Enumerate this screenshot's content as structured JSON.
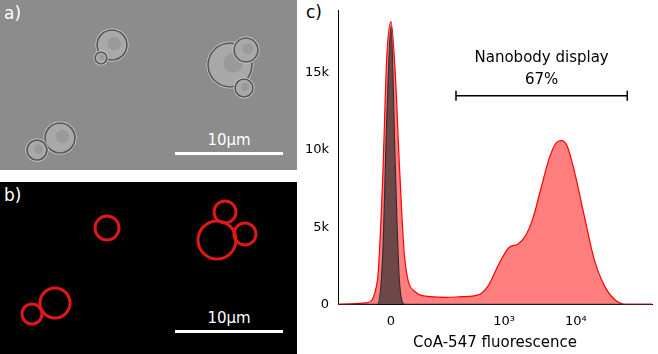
{
  "panels": [
    {
      "label": "a)",
      "scale_bar": "10µm"
    },
    {
      "label": "b)",
      "scale_bar": "10µm"
    },
    {
      "label": "c)"
    }
  ],
  "chart_data": {
    "type": "area",
    "x_label": "CoA-547 fluorescence",
    "x": [
      -140,
      -46,
      -24,
      -14.5,
      -7.2,
      0,
      7.2,
      14.5,
      24,
      46,
      85,
      150,
      254,
      426,
      598,
      840,
      1180,
      1550,
      1960,
      2490,
      3260,
      4280,
      5430,
      6430,
      7620,
      9660,
      12700,
      17800,
      25000,
      35000,
      49200,
      81800,
      115000
    ],
    "series": [
      {
        "color": "#303030",
        "values": [
          0,
          0,
          0,
          3000,
          12000,
          18000,
          9000,
          1500,
          0,
          0,
          0,
          0,
          0,
          0,
          0,
          0,
          0,
          0,
          0,
          0,
          0,
          0,
          0,
          0,
          0,
          0,
          0,
          0,
          0,
          0,
          0,
          0,
          0
        ]
      },
      {
        "color": "#ff0000",
        "values": [
          0,
          100,
          1500,
          8000,
          16000,
          18300,
          15000,
          9000,
          3000,
          800,
          500,
          450,
          500,
          600,
          1200,
          2600,
          3700,
          3900,
          4400,
          5500,
          7500,
          9500,
          10500,
          10600,
          10200,
          8500,
          6000,
          3000,
          1200,
          300,
          0,
          0,
          0
        ]
      }
    ],
    "xlim": [
      -140,
      115000
    ],
    "xticks": [
      0,
      {
        "value": 1000,
        "label": "10³"
      },
      {
        "value": 10000,
        "label": "10⁴"
      }
    ],
    "ylim": [
      0,
      19000
    ],
    "yticks": [
      0,
      {
        "value": 5000,
        "label": "5k"
      },
      {
        "value": 10000,
        "label": "10k"
      },
      {
        "value": 15000,
        "label": "15k"
      }
    ],
    "grid": false,
    "annotations": [
      {
        "text": [
          "Nanobody display",
          "67%"
        ],
        "x": [
          210,
          52000
        ],
        "y": 13500
      }
    ]
  }
}
